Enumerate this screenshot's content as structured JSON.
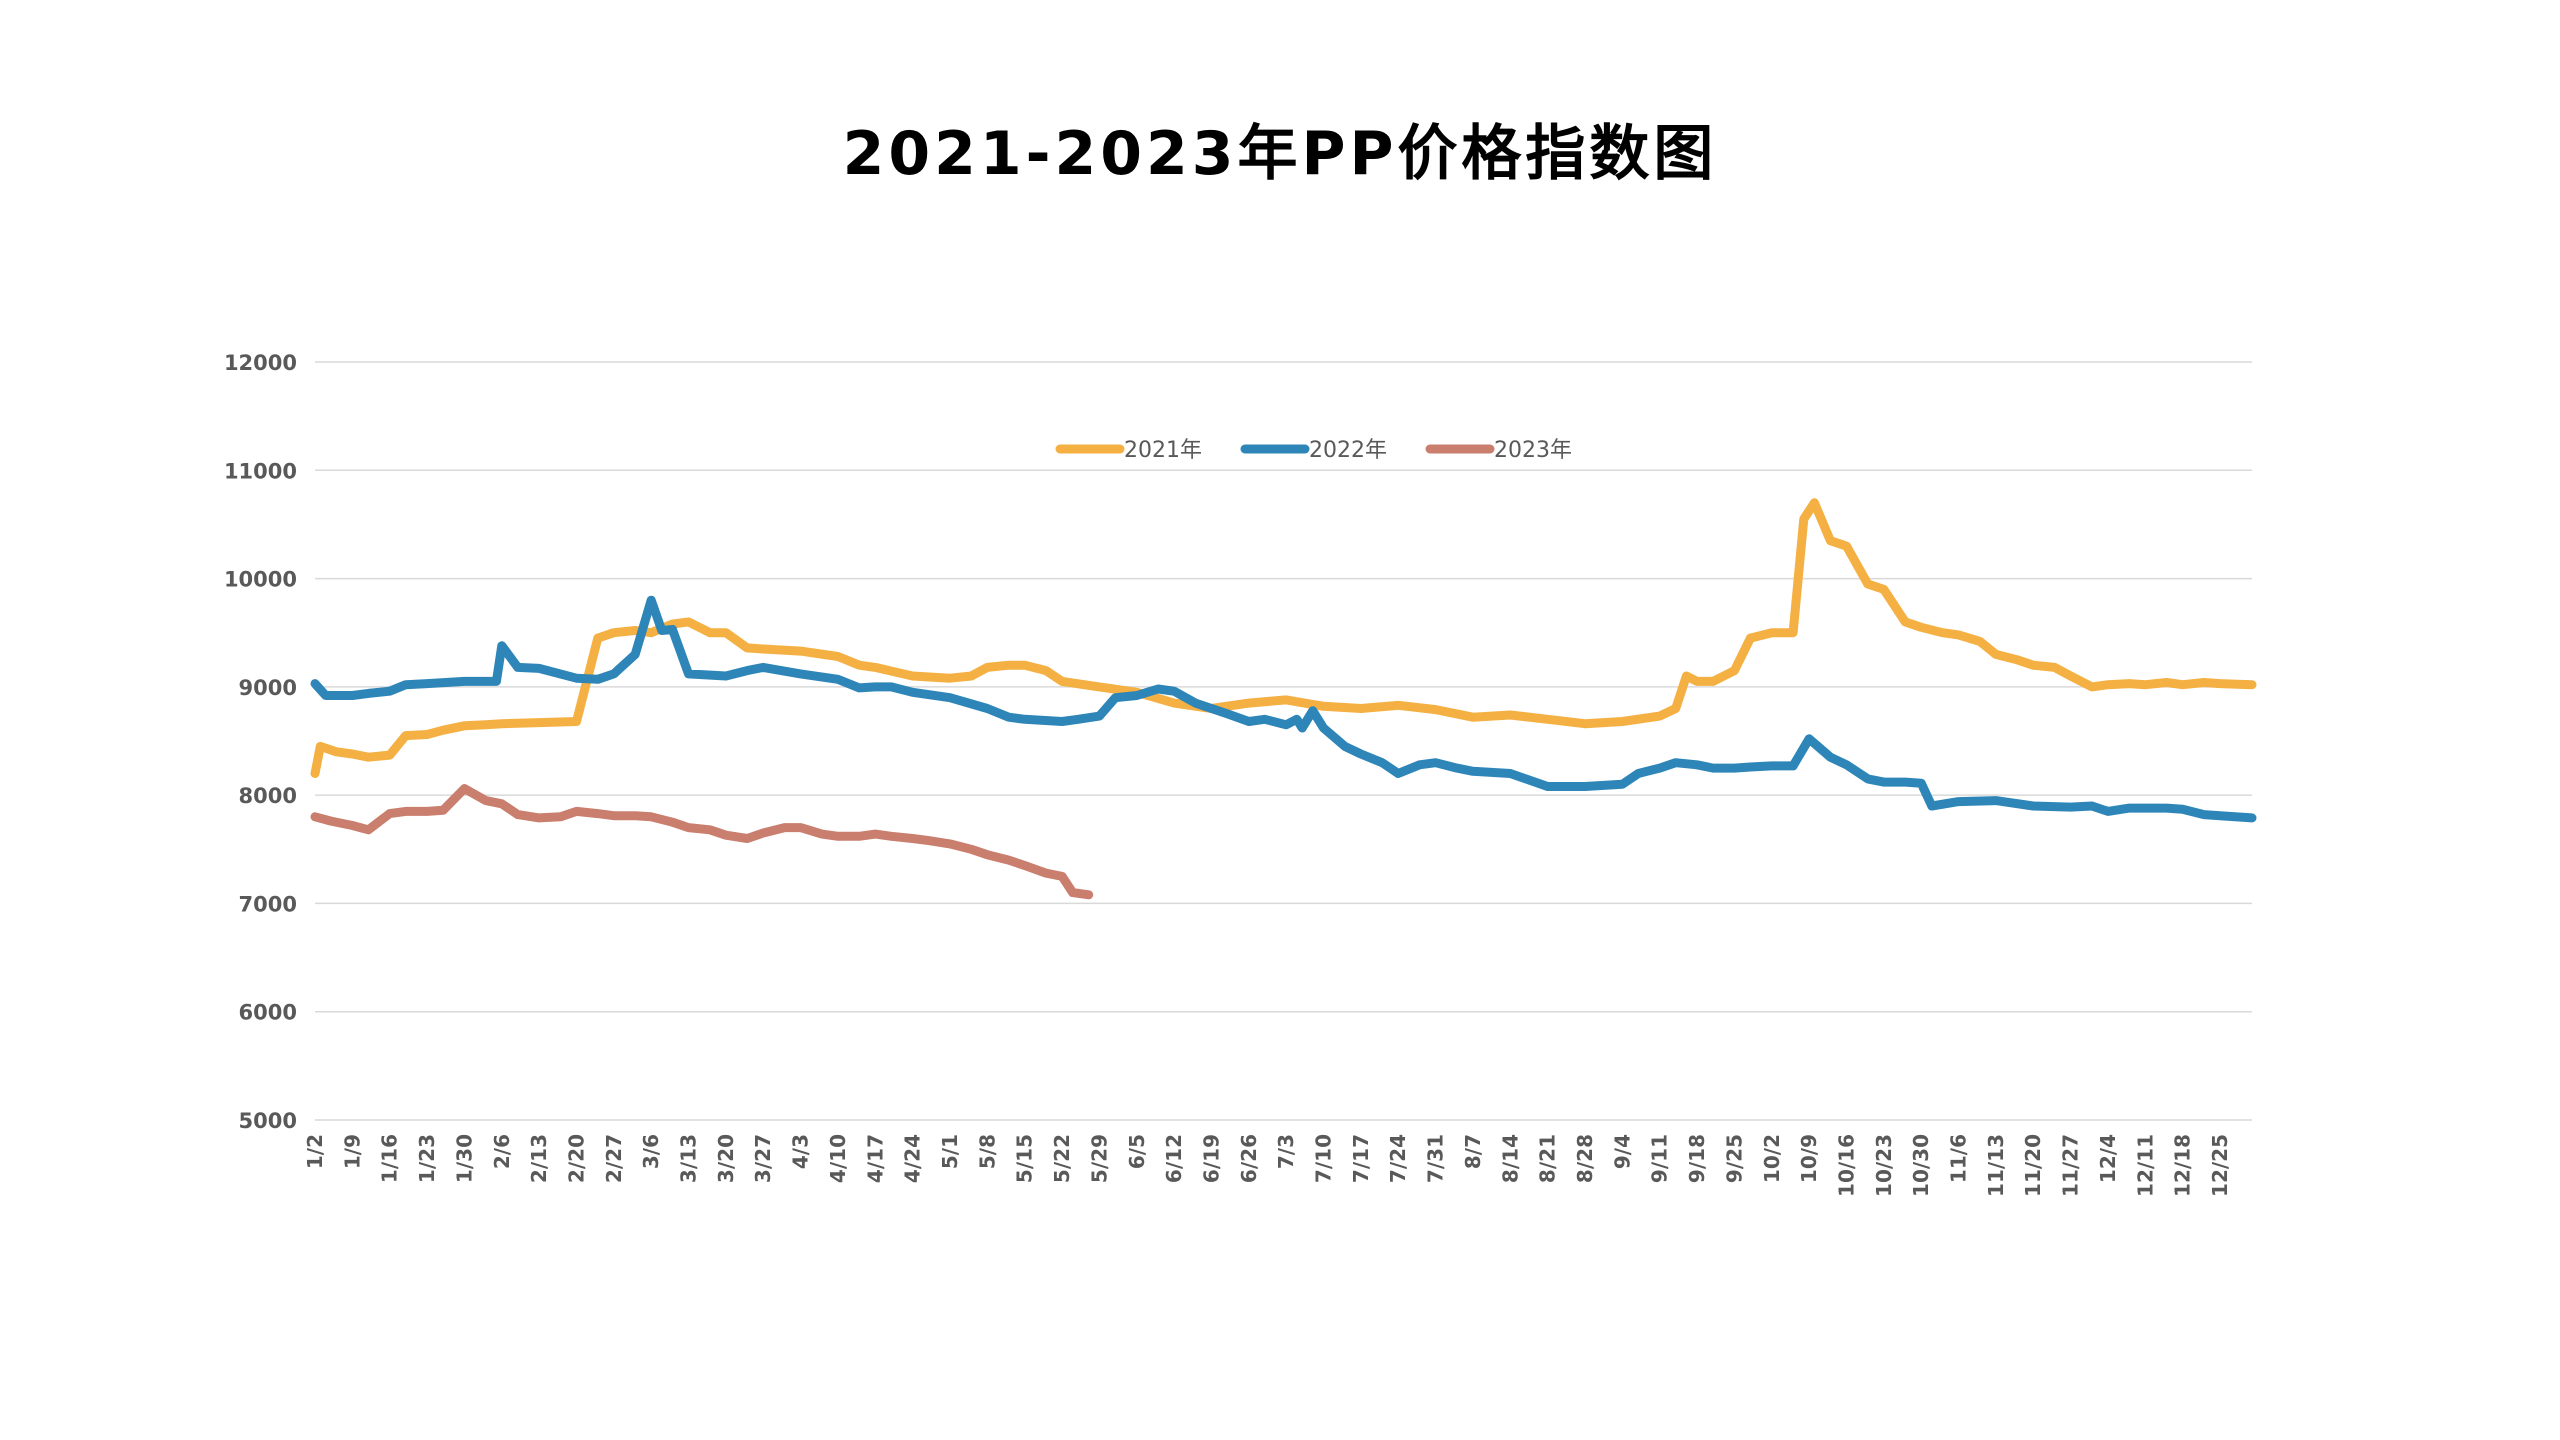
{
  "chart_data": {
    "type": "line",
    "title": "2021-2023年PP价格指数图",
    "xlabel": "",
    "ylabel": "",
    "ylim": [
      5000,
      12000
    ],
    "yticks": [
      5000,
      6000,
      7000,
      8000,
      9000,
      10000,
      11000,
      12000
    ],
    "grid": true,
    "legend_position": "top-center",
    "x_tick_labels": [
      "1/2",
      "1/9",
      "1/16",
      "1/23",
      "1/30",
      "2/6",
      "2/13",
      "2/20",
      "2/27",
      "3/6",
      "3/13",
      "3/20",
      "3/27",
      "4/3",
      "4/10",
      "4/17",
      "4/24",
      "5/1",
      "5/8",
      "5/15",
      "5/22",
      "5/29",
      "6/5",
      "6/12",
      "6/19",
      "6/26",
      "7/3",
      "7/10",
      "7/17",
      "7/24",
      "7/31",
      "8/7",
      "8/14",
      "8/21",
      "8/28",
      "9/4",
      "9/11",
      "9/18",
      "9/25",
      "10/2",
      "10/9",
      "10/16",
      "10/23",
      "10/30",
      "11/6",
      "11/13",
      "11/20",
      "11/27",
      "12/4",
      "12/11",
      "12/18",
      "12/25"
    ],
    "series": [
      {
        "name": "2021年",
        "color": "#F4B042",
        "points": [
          [
            "1/2",
            8200
          ],
          [
            "1/3",
            8450
          ],
          [
            "1/6",
            8400
          ],
          [
            "1/9",
            8380
          ],
          [
            "1/12",
            8350
          ],
          [
            "1/16",
            8370
          ],
          [
            "1/19",
            8550
          ],
          [
            "1/23",
            8560
          ],
          [
            "1/26",
            8600
          ],
          [
            "1/30",
            8640
          ],
          [
            "2/3",
            8650
          ],
          [
            "2/6",
            8660
          ],
          [
            "2/13",
            8670
          ],
          [
            "2/20",
            8680
          ],
          [
            "2/24",
            9450
          ],
          [
            "2/27",
            9500
          ],
          [
            "3/3",
            9520
          ],
          [
            "3/6",
            9500
          ],
          [
            "3/10",
            9580
          ],
          [
            "3/13",
            9600
          ],
          [
            "3/17",
            9500
          ],
          [
            "3/20",
            9500
          ],
          [
            "3/24",
            9360
          ],
          [
            "3/27",
            9350
          ],
          [
            "4/3",
            9330
          ],
          [
            "4/10",
            9280
          ],
          [
            "4/14",
            9200
          ],
          [
            "4/17",
            9180
          ],
          [
            "4/24",
            9100
          ],
          [
            "5/1",
            9080
          ],
          [
            "5/5",
            9100
          ],
          [
            "5/8",
            9180
          ],
          [
            "5/12",
            9200
          ],
          [
            "5/15",
            9200
          ],
          [
            "5/19",
            9150
          ],
          [
            "5/22",
            9050
          ],
          [
            "5/29",
            9000
          ],
          [
            "6/5",
            8950
          ],
          [
            "6/12",
            8850
          ],
          [
            "6/19",
            8800
          ],
          [
            "6/26",
            8850
          ],
          [
            "7/3",
            8880
          ],
          [
            "7/10",
            8820
          ],
          [
            "7/17",
            8800
          ],
          [
            "7/24",
            8830
          ],
          [
            "7/31",
            8790
          ],
          [
            "8/7",
            8720
          ],
          [
            "8/14",
            8740
          ],
          [
            "8/21",
            8700
          ],
          [
            "8/28",
            8660
          ],
          [
            "9/4",
            8680
          ],
          [
            "9/11",
            8730
          ],
          [
            "9/14",
            8800
          ],
          [
            "9/16",
            9100
          ],
          [
            "9/18",
            9050
          ],
          [
            "9/21",
            9050
          ],
          [
            "9/25",
            9150
          ],
          [
            "9/28",
            9450
          ],
          [
            "10/2",
            9500
          ],
          [
            "10/6",
            9500
          ],
          [
            "10/8",
            10550
          ],
          [
            "10/10",
            10700
          ],
          [
            "10/13",
            10350
          ],
          [
            "10/16",
            10300
          ],
          [
            "10/20",
            9950
          ],
          [
            "10/23",
            9900
          ],
          [
            "10/27",
            9600
          ],
          [
            "10/30",
            9550
          ],
          [
            "11/3",
            9500
          ],
          [
            "11/6",
            9480
          ],
          [
            "11/10",
            9420
          ],
          [
            "11/13",
            9300
          ],
          [
            "11/17",
            9250
          ],
          [
            "11/20",
            9200
          ],
          [
            "11/24",
            9180
          ],
          [
            "11/27",
            9100
          ],
          [
            "12/1",
            9000
          ],
          [
            "12/4",
            9020
          ],
          [
            "12/8",
            9030
          ],
          [
            "12/11",
            9020
          ],
          [
            "12/15",
            9040
          ],
          [
            "12/18",
            9020
          ],
          [
            "12/22",
            9040
          ],
          [
            "12/25",
            9030
          ],
          [
            "12/31",
            9020
          ]
        ]
      },
      {
        "name": "2022年",
        "color": "#2E86B8",
        "points": [
          [
            "1/2",
            9030
          ],
          [
            "1/4",
            8920
          ],
          [
            "1/9",
            8920
          ],
          [
            "1/12",
            8940
          ],
          [
            "1/16",
            8960
          ],
          [
            "1/19",
            9020
          ],
          [
            "1/23",
            9030
          ],
          [
            "1/30",
            9050
          ],
          [
            "2/3",
            9050
          ],
          [
            "2/5",
            9050
          ],
          [
            "2/6",
            9380
          ],
          [
            "2/9",
            9180
          ],
          [
            "2/13",
            9170
          ],
          [
            "2/20",
            9080
          ],
          [
            "2/24",
            9070
          ],
          [
            "2/27",
            9120
          ],
          [
            "3/3",
            9300
          ],
          [
            "3/6",
            9800
          ],
          [
            "3/8",
            9520
          ],
          [
            "3/10",
            9530
          ],
          [
            "3/13",
            9120
          ],
          [
            "3/20",
            9100
          ],
          [
            "3/24",
            9150
          ],
          [
            "3/27",
            9180
          ],
          [
            "4/3",
            9120
          ],
          [
            "4/10",
            9070
          ],
          [
            "4/14",
            8990
          ],
          [
            "4/17",
            9000
          ],
          [
            "4/20",
            9000
          ],
          [
            "4/24",
            8950
          ],
          [
            "5/1",
            8900
          ],
          [
            "5/8",
            8800
          ],
          [
            "5/12",
            8720
          ],
          [
            "5/15",
            8700
          ],
          [
            "5/22",
            8680
          ],
          [
            "5/25",
            8700
          ],
          [
            "5/29",
            8730
          ],
          [
            "6/1",
            8900
          ],
          [
            "6/5",
            8920
          ],
          [
            "6/9",
            8980
          ],
          [
            "6/12",
            8960
          ],
          [
            "6/16",
            8850
          ],
          [
            "6/19",
            8800
          ],
          [
            "6/22",
            8750
          ],
          [
            "6/26",
            8680
          ],
          [
            "6/29",
            8700
          ],
          [
            "7/3",
            8650
          ],
          [
            "7/5",
            8700
          ],
          [
            "7/6",
            8620
          ],
          [
            "7/8",
            8780
          ],
          [
            "7/10",
            8620
          ],
          [
            "7/14",
            8450
          ],
          [
            "7/17",
            8380
          ],
          [
            "7/21",
            8300
          ],
          [
            "7/24",
            8200
          ],
          [
            "7/28",
            8280
          ],
          [
            "7/31",
            8300
          ],
          [
            "8/4",
            8250
          ],
          [
            "8/7",
            8220
          ],
          [
            "8/14",
            8200
          ],
          [
            "8/21",
            8080
          ],
          [
            "8/28",
            8080
          ],
          [
            "9/4",
            8100
          ],
          [
            "9/7",
            8200
          ],
          [
            "9/11",
            8250
          ],
          [
            "9/14",
            8300
          ],
          [
            "9/18",
            8280
          ],
          [
            "9/21",
            8250
          ],
          [
            "9/25",
            8250
          ],
          [
            "9/28",
            8260
          ],
          [
            "10/2",
            8270
          ],
          [
            "10/6",
            8270
          ],
          [
            "10/9",
            8520
          ],
          [
            "10/13",
            8350
          ],
          [
            "10/16",
            8280
          ],
          [
            "10/20",
            8150
          ],
          [
            "10/23",
            8120
          ],
          [
            "10/27",
            8120
          ],
          [
            "10/30",
            8110
          ],
          [
            "11/1",
            7900
          ],
          [
            "11/6",
            7940
          ],
          [
            "11/13",
            7950
          ],
          [
            "11/20",
            7900
          ],
          [
            "11/27",
            7890
          ],
          [
            "12/1",
            7900
          ],
          [
            "12/4",
            7850
          ],
          [
            "12/8",
            7880
          ],
          [
            "12/11",
            7880
          ],
          [
            "12/15",
            7880
          ],
          [
            "12/18",
            7870
          ],
          [
            "12/22",
            7820
          ],
          [
            "12/25",
            7810
          ],
          [
            "12/31",
            7790
          ]
        ]
      },
      {
        "name": "2023年",
        "color": "#C97E6E",
        "points": [
          [
            "1/2",
            7800
          ],
          [
            "1/5",
            7760
          ],
          [
            "1/9",
            7720
          ],
          [
            "1/12",
            7680
          ],
          [
            "1/16",
            7830
          ],
          [
            "1/19",
            7850
          ],
          [
            "1/23",
            7850
          ],
          [
            "1/26",
            7860
          ],
          [
            "1/30",
            8060
          ],
          [
            "2/3",
            7950
          ],
          [
            "2/6",
            7920
          ],
          [
            "2/9",
            7820
          ],
          [
            "2/13",
            7790
          ],
          [
            "2/17",
            7800
          ],
          [
            "2/20",
            7850
          ],
          [
            "2/24",
            7830
          ],
          [
            "2/27",
            7810
          ],
          [
            "3/3",
            7810
          ],
          [
            "3/6",
            7800
          ],
          [
            "3/10",
            7750
          ],
          [
            "3/13",
            7700
          ],
          [
            "3/17",
            7680
          ],
          [
            "3/20",
            7630
          ],
          [
            "3/24",
            7600
          ],
          [
            "3/27",
            7650
          ],
          [
            "3/31",
            7700
          ],
          [
            "4/3",
            7700
          ],
          [
            "4/7",
            7640
          ],
          [
            "4/10",
            7620
          ],
          [
            "4/14",
            7620
          ],
          [
            "4/17",
            7640
          ],
          [
            "4/20",
            7620
          ],
          [
            "4/24",
            7600
          ],
          [
            "4/27",
            7580
          ],
          [
            "5/1",
            7550
          ],
          [
            "5/5",
            7500
          ],
          [
            "5/8",
            7450
          ],
          [
            "5/12",
            7400
          ],
          [
            "5/15",
            7350
          ],
          [
            "5/19",
            7280
          ],
          [
            "5/22",
            7250
          ],
          [
            "5/24",
            7100
          ],
          [
            "5/27",
            7080
          ]
        ]
      }
    ]
  }
}
